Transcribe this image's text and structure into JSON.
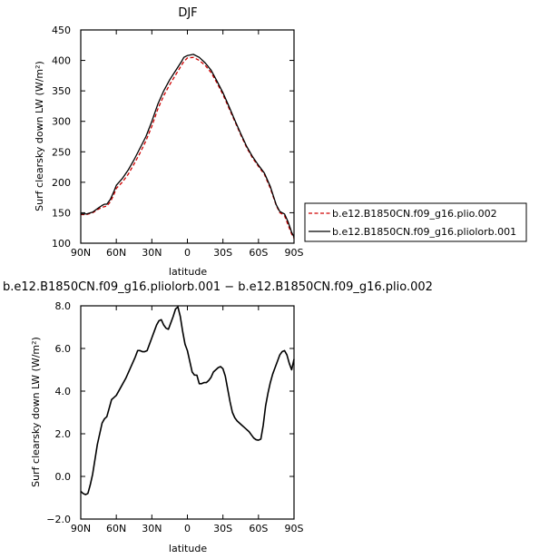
{
  "chart_data": [
    {
      "type": "line",
      "title": "DJF",
      "xlabel": "latitude",
      "ylabel": "Surf clearsky down LW (W/m²)",
      "xlim": [
        90,
        -90
      ],
      "ylim": [
        100,
        450
      ],
      "x_ticks": [
        {
          "value": 90,
          "label": "90N"
        },
        {
          "value": 60,
          "label": "60N"
        },
        {
          "value": 30,
          "label": "30N"
        },
        {
          "value": 0,
          "label": "0"
        },
        {
          "value": -30,
          "label": "30S"
        },
        {
          "value": -60,
          "label": "60S"
        },
        {
          "value": -90,
          "label": "90S"
        }
      ],
      "y_ticks": [
        {
          "value": 100,
          "label": "100"
        },
        {
          "value": 150,
          "label": "150"
        },
        {
          "value": 200,
          "label": "200"
        },
        {
          "value": 250,
          "label": "250"
        },
        {
          "value": 300,
          "label": "300"
        },
        {
          "value": 350,
          "label": "350"
        },
        {
          "value": 400,
          "label": "400"
        },
        {
          "value": 450,
          "label": "450"
        }
      ],
      "grid": false,
      "legend_position": "right",
      "series": [
        {
          "name": "b.e12.B1850CN.f09_g16.plio.002",
          "color": "#d00000",
          "dash": "dashed",
          "x": [
            90,
            85,
            80,
            75,
            72,
            70,
            68,
            65,
            62,
            60,
            55,
            50,
            45,
            40,
            35,
            30,
            25,
            20,
            15,
            10,
            5,
            3,
            0,
            -5,
            -10,
            -15,
            -20,
            -25,
            -30,
            -35,
            -40,
            -45,
            -50,
            -55,
            -60,
            -65,
            -70,
            -75,
            -78,
            -80,
            -82,
            -85,
            -88,
            -90
          ],
          "y": [
            147,
            147,
            150,
            156,
            159,
            160,
            161,
            168,
            180,
            190,
            200,
            213,
            230,
            248,
            268,
            292,
            320,
            342,
            360,
            376,
            392,
            398,
            404,
            405,
            400,
            392,
            380,
            363,
            344,
            322,
            300,
            278,
            257,
            240,
            226,
            213,
            190,
            162,
            150,
            148,
            145,
            130,
            115,
            108
          ]
        },
        {
          "name": "b.e12.B1850CN.f09_g16.pliolorb.001",
          "color": "#000000",
          "dash": "solid",
          "x": [
            90,
            85,
            80,
            75,
            72,
            70,
            68,
            65,
            62,
            60,
            55,
            50,
            45,
            40,
            35,
            30,
            25,
            20,
            15,
            10,
            5,
            3,
            0,
            -5,
            -10,
            -15,
            -20,
            -25,
            -30,
            -35,
            -40,
            -45,
            -50,
            -55,
            -60,
            -65,
            -70,
            -75,
            -78,
            -80,
            -82,
            -85,
            -88,
            -90
          ],
          "y": [
            148,
            148,
            151,
            158,
            162,
            164,
            164,
            172,
            185,
            195,
            206,
            220,
            237,
            256,
            275,
            300,
            328,
            350,
            368,
            383,
            398,
            405,
            408,
            410,
            405,
            396,
            384,
            366,
            347,
            325,
            302,
            280,
            259,
            242,
            228,
            215,
            193,
            163,
            152,
            150,
            148,
            135,
            118,
            110
          ]
        }
      ]
    },
    {
      "type": "line",
      "title": "b.e12.B1850CN.f09_g16.pliolorb.001 − b.e12.B1850CN.f09_g16.plio.002",
      "xlabel": "latitude",
      "ylabel": "Surf clearsky down LW (W/m²)",
      "xlim": [
        90,
        -90
      ],
      "ylim": [
        -2.0,
        8.0
      ],
      "x_ticks": [
        {
          "value": 90,
          "label": "90N"
        },
        {
          "value": 60,
          "label": "60N"
        },
        {
          "value": 30,
          "label": "30N"
        },
        {
          "value": 0,
          "label": "0"
        },
        {
          "value": -30,
          "label": "30S"
        },
        {
          "value": -60,
          "label": "60S"
        },
        {
          "value": -90,
          "label": "90S"
        }
      ],
      "y_ticks": [
        {
          "value": -2.0,
          "label": "−2.0"
        },
        {
          "value": 0.0,
          "label": "0.0"
        },
        {
          "value": 2.0,
          "label": "2.0"
        },
        {
          "value": 4.0,
          "label": "4.0"
        },
        {
          "value": 6.0,
          "label": "6.0"
        },
        {
          "value": 8.0,
          "label": "8.0"
        }
      ],
      "grid": false,
      "series": [
        {
          "color": "#000000",
          "dash": "solid",
          "x": [
            90,
            88,
            86,
            84,
            82,
            80,
            78,
            76,
            74,
            72,
            70,
            68,
            66,
            64,
            62,
            60,
            56,
            52,
            48,
            44,
            42,
            40,
            38,
            36,
            34,
            32,
            30,
            28,
            26,
            24,
            22,
            20,
            18,
            16,
            14,
            12,
            10,
            8,
            6,
            4,
            2,
            0,
            -2,
            -4,
            -6,
            -8,
            -10,
            -12,
            -14,
            -16,
            -18,
            -20,
            -22,
            -24,
            -26,
            -28,
            -30,
            -32,
            -34,
            -36,
            -38,
            -40,
            -42,
            -44,
            -46,
            -48,
            -50,
            -52,
            -54,
            -56,
            -58,
            -60,
            -62,
            -64,
            -66,
            -68,
            -70,
            -72,
            -74,
            -76,
            -78,
            -80,
            -82,
            -84,
            -86,
            -88,
            -90
          ],
          "y": [
            -0.7,
            -0.8,
            -0.85,
            -0.8,
            -0.4,
            0.1,
            0.8,
            1.5,
            2.0,
            2.5,
            2.7,
            2.8,
            3.2,
            3.6,
            3.7,
            3.8,
            4.2,
            4.6,
            5.1,
            5.6,
            5.9,
            5.9,
            5.85,
            5.85,
            5.9,
            6.2,
            6.5,
            6.8,
            7.1,
            7.3,
            7.35,
            7.1,
            6.95,
            6.9,
            7.2,
            7.5,
            7.85,
            7.95,
            7.5,
            6.8,
            6.2,
            5.9,
            5.4,
            4.9,
            4.75,
            4.75,
            4.35,
            4.35,
            4.4,
            4.4,
            4.5,
            4.65,
            4.9,
            5.0,
            5.1,
            5.15,
            5.05,
            4.7,
            4.1,
            3.5,
            3.0,
            2.75,
            2.6,
            2.5,
            2.4,
            2.3,
            2.2,
            2.1,
            1.95,
            1.8,
            1.72,
            1.7,
            1.75,
            2.4,
            3.3,
            3.9,
            4.4,
            4.8,
            5.1,
            5.4,
            5.7,
            5.85,
            5.9,
            5.7,
            5.3,
            5.0,
            5.5
          ]
        }
      ]
    }
  ]
}
